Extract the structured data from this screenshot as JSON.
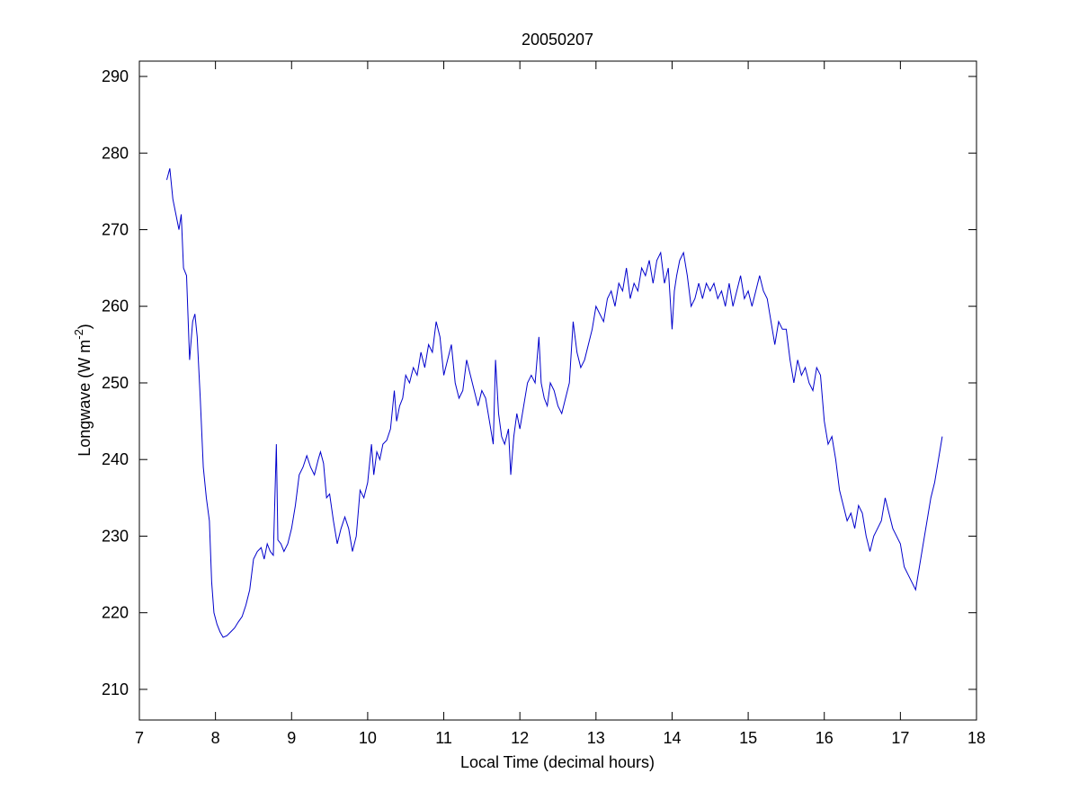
{
  "chart_data": {
    "type": "line",
    "title": "20050207",
    "xlabel": "Local Time (decimal hours)",
    "ylabel": [
      "Longwave (W m",
      "-2",
      ")"
    ],
    "xlim": [
      7,
      18
    ],
    "xticks": [
      7,
      8,
      9,
      10,
      11,
      12,
      13,
      14,
      15,
      16,
      17,
      18
    ],
    "ylim": [
      206,
      292
    ],
    "yticks": [
      210,
      220,
      230,
      240,
      250,
      260,
      270,
      280,
      290
    ],
    "grid": false,
    "series": [
      {
        "color": "#0000cc",
        "x": [
          7.36,
          7.4,
          7.44,
          7.48,
          7.52,
          7.55,
          7.58,
          7.62,
          7.66,
          7.7,
          7.73,
          7.76,
          7.8,
          7.84,
          7.88,
          7.92,
          7.95,
          7.98,
          8.02,
          8.06,
          8.1,
          8.15,
          8.2,
          8.25,
          8.3,
          8.35,
          8.4,
          8.45,
          8.5,
          8.55,
          8.6,
          8.64,
          8.68,
          8.72,
          8.76,
          8.8,
          8.82,
          8.86,
          8.9,
          8.95,
          9.0,
          9.05,
          9.1,
          9.15,
          9.2,
          9.25,
          9.3,
          9.35,
          9.38,
          9.42,
          9.46,
          9.5,
          9.55,
          9.6,
          9.65,
          9.7,
          9.75,
          9.8,
          9.85,
          9.9,
          9.95,
          10.0,
          10.05,
          10.08,
          10.12,
          10.16,
          10.2,
          10.25,
          10.3,
          10.35,
          10.38,
          10.42,
          10.46,
          10.5,
          10.55,
          10.6,
          10.65,
          10.7,
          10.75,
          10.8,
          10.85,
          10.9,
          10.95,
          11.0,
          11.05,
          11.1,
          11.15,
          11.2,
          11.25,
          11.3,
          11.35,
          11.4,
          11.45,
          11.5,
          11.55,
          11.6,
          11.65,
          11.68,
          11.72,
          11.76,
          11.8,
          11.85,
          11.88,
          11.92,
          11.96,
          12.0,
          12.05,
          12.1,
          12.15,
          12.2,
          12.25,
          12.28,
          12.32,
          12.36,
          12.4,
          12.45,
          12.5,
          12.55,
          12.6,
          12.65,
          12.7,
          12.75,
          12.8,
          12.85,
          12.9,
          12.95,
          13.0,
          13.05,
          13.1,
          13.15,
          13.2,
          13.25,
          13.3,
          13.35,
          13.4,
          13.45,
          13.5,
          13.55,
          13.6,
          13.65,
          13.7,
          13.75,
          13.8,
          13.85,
          13.9,
          13.95,
          14.0,
          14.03,
          14.06,
          14.1,
          14.15,
          14.2,
          14.25,
          14.3,
          14.35,
          14.4,
          14.45,
          14.5,
          14.55,
          14.6,
          14.65,
          14.7,
          14.75,
          14.8,
          14.85,
          14.9,
          14.95,
          15.0,
          15.05,
          15.1,
          15.15,
          15.2,
          15.25,
          15.3,
          15.35,
          15.4,
          15.45,
          15.5,
          15.55,
          15.6,
          15.65,
          15.7,
          15.75,
          15.8,
          15.85,
          15.9,
          15.95,
          16.0,
          16.05,
          16.1,
          16.15,
          16.2,
          16.25,
          16.3,
          16.35,
          16.4,
          16.45,
          16.5,
          16.55,
          16.6,
          16.65,
          16.7,
          16.75,
          16.8,
          16.85,
          16.9,
          16.95,
          17.0,
          17.05,
          17.1,
          17.15,
          17.2,
          17.25,
          17.3,
          17.35,
          17.4,
          17.45,
          17.5,
          17.55
        ],
        "values": [
          276.5,
          278,
          274,
          272,
          270,
          272,
          265,
          264,
          253,
          258,
          259,
          256,
          248,
          239,
          235,
          232,
          224,
          220,
          218.5,
          217.5,
          216.8,
          217,
          217.5,
          218,
          218.8,
          219.5,
          221,
          223,
          227,
          228,
          228.5,
          227,
          229,
          228,
          227.5,
          242,
          229.5,
          229,
          228,
          229,
          231,
          234,
          238,
          239,
          240.5,
          239,
          238,
          240,
          241,
          239.5,
          235,
          235.5,
          232,
          229,
          231,
          232.5,
          231,
          228,
          230,
          236,
          235,
          237,
          242,
          238,
          241,
          240,
          242,
          242.5,
          244,
          249,
          245,
          247,
          248,
          251,
          250,
          252,
          251,
          254,
          252,
          255,
          254,
          258,
          256,
          251,
          253,
          255,
          250,
          248,
          249,
          253,
          251,
          249,
          247,
          249,
          248,
          245,
          242,
          253,
          246,
          243,
          242,
          244,
          238,
          243,
          246,
          244,
          247,
          250,
          251,
          250,
          256,
          250,
          248,
          247,
          250,
          249,
          247,
          246,
          248,
          250,
          258,
          254,
          252,
          253,
          255,
          257,
          260,
          259,
          258,
          261,
          262,
          260,
          263,
          262,
          265,
          261,
          263,
          262,
          265,
          264,
          266,
          263,
          266,
          267,
          263,
          265,
          257,
          262,
          264,
          266,
          267,
          264,
          260,
          261,
          263,
          261,
          263,
          262,
          263,
          261,
          262,
          260,
          263,
          260,
          262,
          264,
          261,
          262,
          260,
          262,
          264,
          262,
          261,
          258,
          255,
          258,
          257,
          257,
          253,
          250,
          253,
          251,
          252,
          250,
          249,
          252,
          251,
          245,
          242,
          243,
          240,
          236,
          234,
          232,
          233,
          231,
          234,
          233,
          230,
          228,
          230,
          231,
          232,
          235,
          233,
          231,
          230,
          229,
          226,
          225,
          224,
          223,
          226,
          229,
          232,
          235,
          237,
          240,
          243
        ]
      }
    ]
  }
}
